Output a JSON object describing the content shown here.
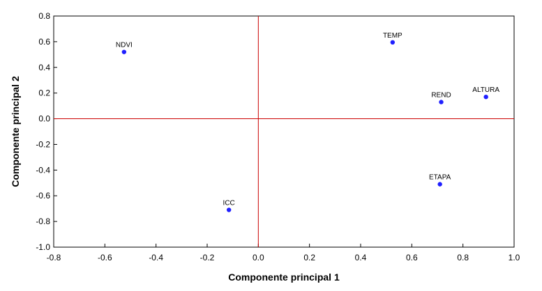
{
  "chart_data": {
    "type": "scatter",
    "title": "",
    "xlabel": "Componente principal 1",
    "ylabel": "Componente principal 2",
    "xlim": [
      -0.8,
      1.0
    ],
    "ylim": [
      -1.0,
      0.8
    ],
    "xticks": [
      "-0.8",
      "-0.6",
      "-0.4",
      "-0.2",
      "0.0",
      "0.2",
      "0.4",
      "0.6",
      "0.8",
      "1.0"
    ],
    "yticks": [
      "0.8",
      "0.6",
      "0.4",
      "0.2",
      "0.0",
      "-0.2",
      "-0.4",
      "-0.6",
      "-0.8",
      "-1.0"
    ],
    "xtick_values": [
      -0.8,
      -0.6,
      -0.4,
      -0.2,
      0.0,
      0.2,
      0.4,
      0.6,
      0.8,
      1.0
    ],
    "ytick_values": [
      0.8,
      0.6,
      0.4,
      0.2,
      0.0,
      -0.2,
      -0.4,
      -0.6,
      -0.8,
      -1.0
    ],
    "reference_lines": {
      "x": 0.0,
      "y": 0.0
    },
    "grid": false,
    "points": [
      {
        "label": "NDVI",
        "x": -0.525,
        "y": 0.52
      },
      {
        "label": "TEMP",
        "x": 0.525,
        "y": 0.595
      },
      {
        "label": "ALTURA",
        "x": 0.89,
        "y": 0.17
      },
      {
        "label": "REND",
        "x": 0.715,
        "y": 0.13
      },
      {
        "label": "ETAPA",
        "x": 0.71,
        "y": -0.51
      },
      {
        "label": "ICC",
        "x": -0.115,
        "y": -0.71
      }
    ],
    "colors": {
      "points": "#1f1fff",
      "reference": "#cc0000",
      "frame": "#000000"
    }
  }
}
